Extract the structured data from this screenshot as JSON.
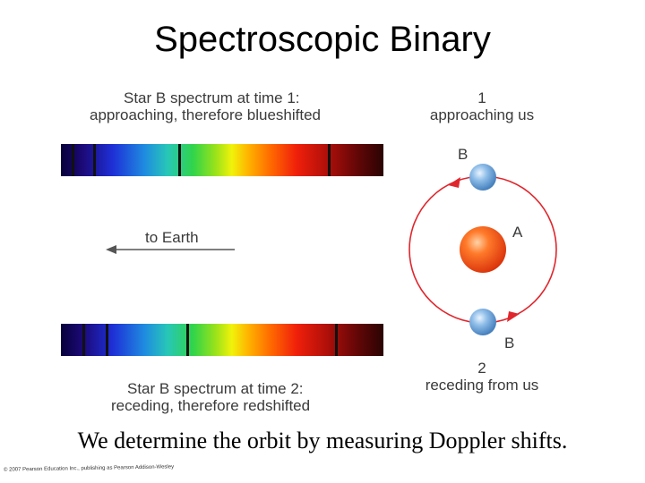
{
  "slide": {
    "title": "Spectroscopic Binary",
    "caption": "We determine the orbit by measuring Doppler shifts.",
    "copyright": "© 2007 Pearson Education Inc., publishing as Pearson Addison-Wesley"
  },
  "diagram": {
    "spectrum_time1": {
      "line1": "Star B spectrum at time 1:",
      "line2": "approaching, therefore blueshifted"
    },
    "spectrum_time2": {
      "line1": "Star B spectrum at time 2:",
      "line2": "receding, therefore redshifted"
    },
    "to_earth": "to Earth",
    "position1": {
      "number": "1",
      "text": "approaching us",
      "star": "B"
    },
    "position2": {
      "number": "2",
      "text": "receding from us",
      "star": "B"
    },
    "star_a": "A",
    "colors": {
      "orbit": "#e0262d",
      "star_a": "#f24a14",
      "star_b": "#6fa3d8",
      "arrow": "#555555"
    }
  }
}
